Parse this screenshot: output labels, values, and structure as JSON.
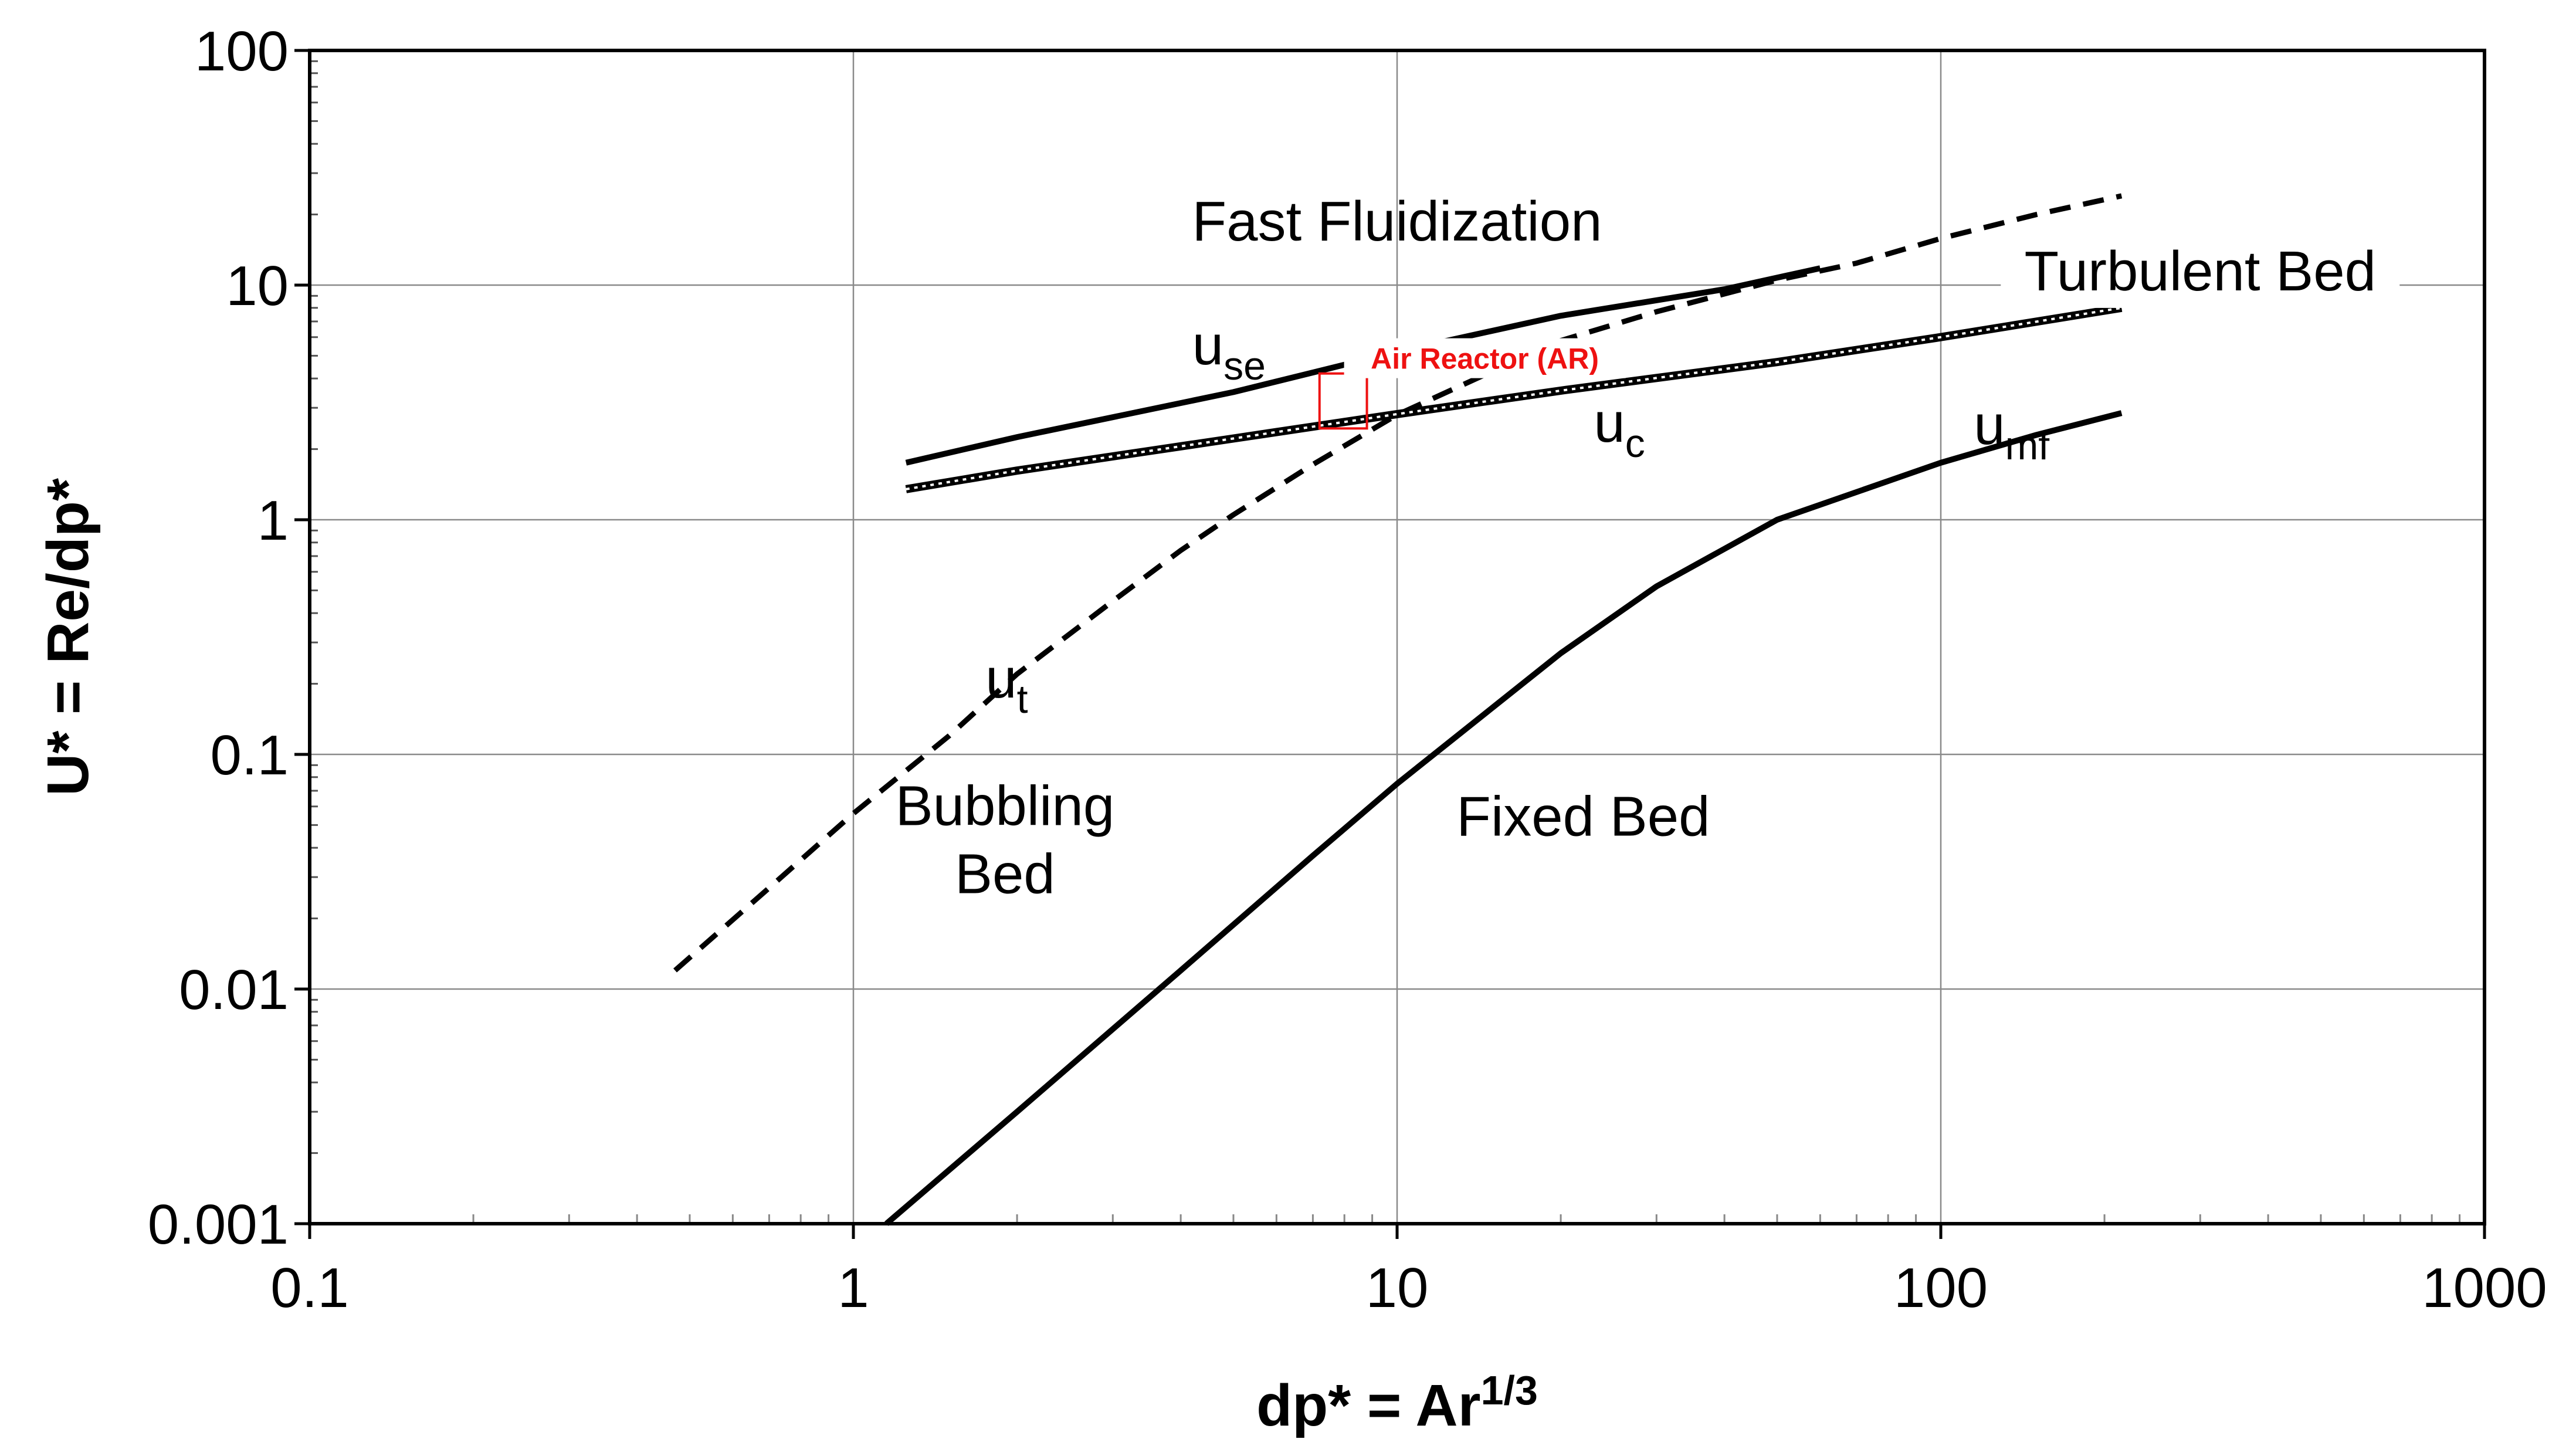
{
  "chart_data": {
    "type": "line",
    "xlabel": "dp* = Ar",
    "xlabel_sup": "1/3",
    "ylabel": "U* = Re/dp*",
    "xscale": "log",
    "yscale": "log",
    "xlim": [
      0.1,
      1000
    ],
    "ylim": [
      0.001,
      100
    ],
    "grid": true,
    "x_ticks": [
      "0.1",
      "1",
      "10",
      "100",
      "1000"
    ],
    "y_ticks": [
      "0.001",
      "0.01",
      "0.1",
      "1",
      "10",
      "100"
    ],
    "series": [
      {
        "name": "u",
        "subscript": "mf",
        "style": "solid",
        "label_at": [
          115,
          2.1
        ],
        "points": [
          [
            1.15,
            0.001
          ],
          [
            2,
            0.003
          ],
          [
            4,
            0.012
          ],
          [
            7,
            0.037
          ],
          [
            10,
            0.075
          ],
          [
            20,
            0.27
          ],
          [
            30,
            0.52
          ],
          [
            50,
            1.0
          ],
          [
            100,
            1.75
          ],
          [
            150,
            2.3
          ],
          [
            215,
            2.85
          ]
        ]
      },
      {
        "name": "u",
        "subscript": "t",
        "style": "dashed",
        "label_at": [
          1.75,
          0.175
        ],
        "points": [
          [
            0.47,
            0.012
          ],
          [
            0.7,
            0.027
          ],
          [
            1,
            0.056
          ],
          [
            1.5,
            0.12
          ],
          [
            2,
            0.22
          ],
          [
            3,
            0.45
          ],
          [
            4,
            0.74
          ],
          [
            5,
            1.05
          ],
          [
            7,
            1.72
          ],
          [
            10,
            2.8
          ],
          [
            15,
            4.3
          ],
          [
            20,
            5.8
          ],
          [
            30,
            7.7
          ],
          [
            50,
            10.5
          ],
          [
            70,
            12.4
          ],
          [
            100,
            15.8
          ],
          [
            150,
            20
          ],
          [
            215,
            24
          ]
        ]
      },
      {
        "name": "u",
        "subscript": "se",
        "style": "solid",
        "label_at": [
          4.2,
          4.6
        ],
        "points": [
          [
            1.25,
            1.75
          ],
          [
            2,
            2.25
          ],
          [
            5,
            3.5
          ],
          [
            10,
            5.2
          ],
          [
            20,
            7.4
          ],
          [
            40,
            9.6
          ],
          [
            60,
            11.8
          ]
        ]
      },
      {
        "name": "u",
        "subscript": "c",
        "style": "dotted-double",
        "label_at": [
          23,
          2.15
        ],
        "points": [
          [
            1.25,
            1.35
          ],
          [
            2,
            1.62
          ],
          [
            5,
            2.22
          ],
          [
            10,
            2.82
          ],
          [
            20,
            3.55
          ],
          [
            50,
            4.7
          ],
          [
            100,
            6.0
          ],
          [
            215,
            8.0
          ]
        ]
      }
    ],
    "regions": [
      {
        "text": "Fast Fluidization",
        "at": [
          10,
          15.5
        ]
      },
      {
        "text": "Turbulent Bed",
        "at": [
          300,
          9.5
        ]
      },
      {
        "lines": [
          "Bubbling",
          "Bed"
        ],
        "at": [
          1.9,
          0.05
        ]
      },
      {
        "text": "Fixed Bed",
        "at": [
          22,
          0.045
        ]
      }
    ],
    "annotation": {
      "text": "Air Reactor (AR)",
      "color": "#ee1111",
      "box_x": [
        7.2,
        8.8
      ],
      "box_y": [
        2.45,
        4.2
      ],
      "label_at": [
        14.5,
        4.4
      ]
    }
  }
}
